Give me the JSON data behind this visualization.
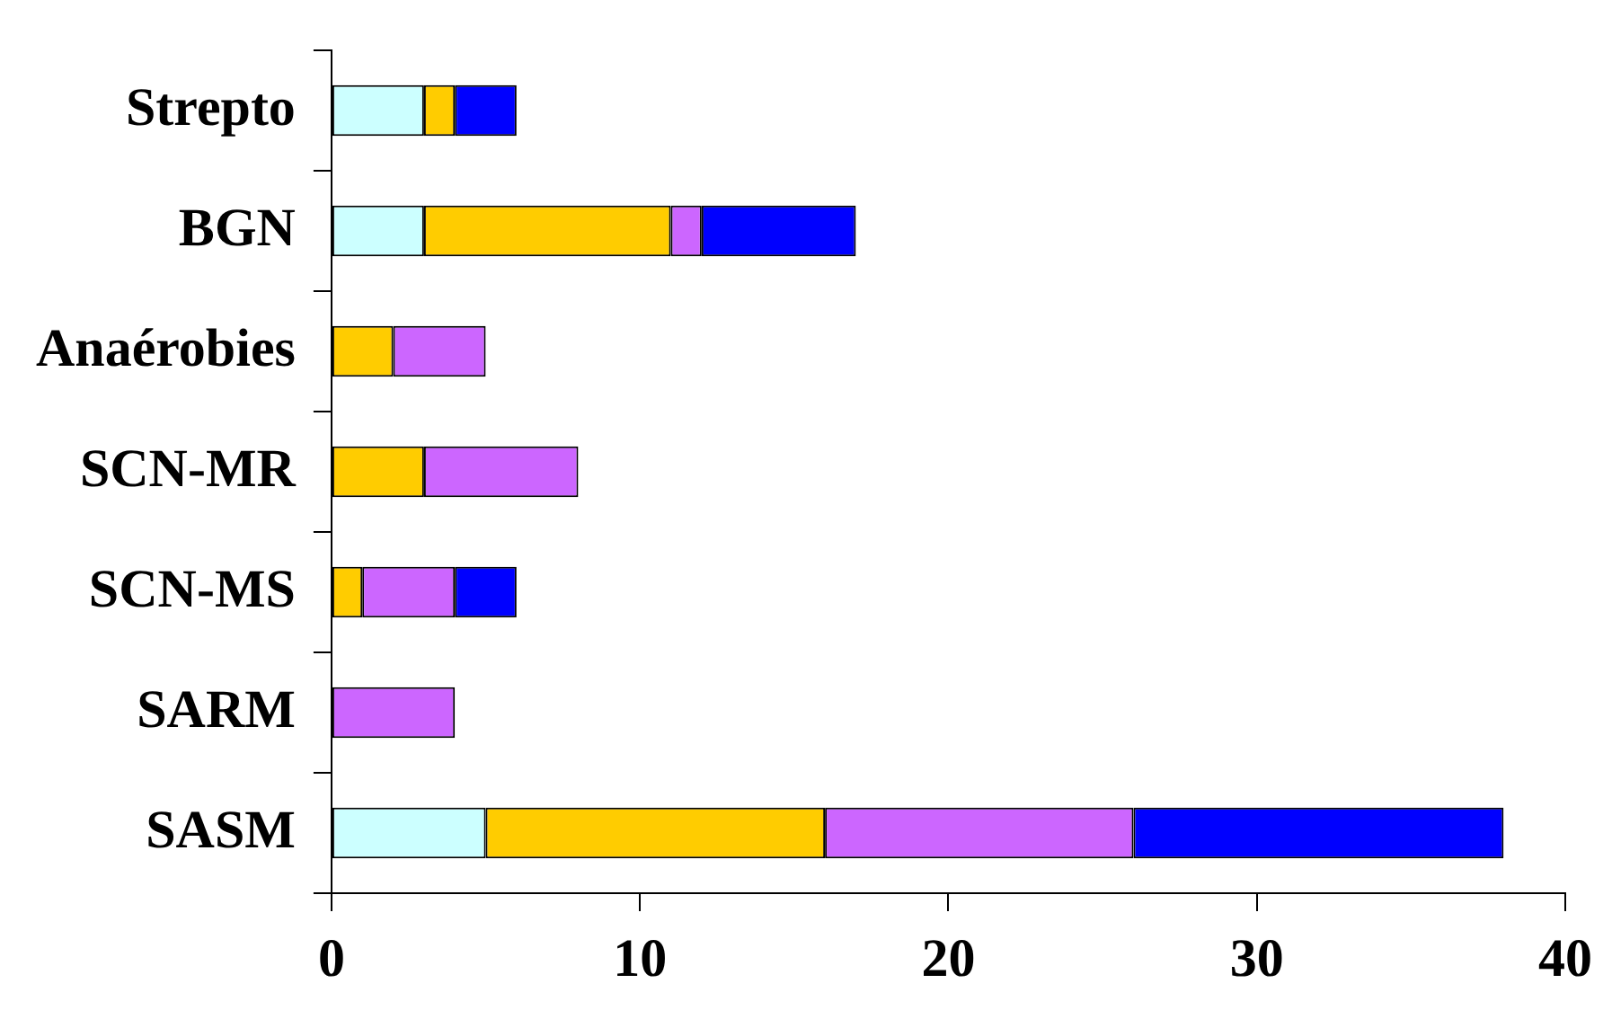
{
  "chart_data": {
    "type": "bar",
    "orientation": "horizontal",
    "stacked": true,
    "categories": [
      "Strepto",
      "BGN",
      "Anaérobies",
      "SCN-MR",
      "SCN-MS",
      "SARM",
      "SASM"
    ],
    "series": [
      {
        "color": "#ccffff",
        "values": [
          3,
          3,
          0,
          0,
          0,
          0,
          5
        ]
      },
      {
        "color": "#ffcc00",
        "values": [
          1,
          8,
          2,
          3,
          1,
          0,
          11
        ]
      },
      {
        "color": "#cc66ff",
        "values": [
          0,
          1,
          3,
          5,
          3,
          4,
          10
        ]
      },
      {
        "color": "#0000ff",
        "values": [
          2,
          5,
          0,
          0,
          2,
          0,
          12
        ]
      }
    ],
    "xlim": [
      0,
      40
    ],
    "xticks": [
      0,
      10,
      20,
      30,
      40
    ],
    "grid": false,
    "legend": false
  }
}
